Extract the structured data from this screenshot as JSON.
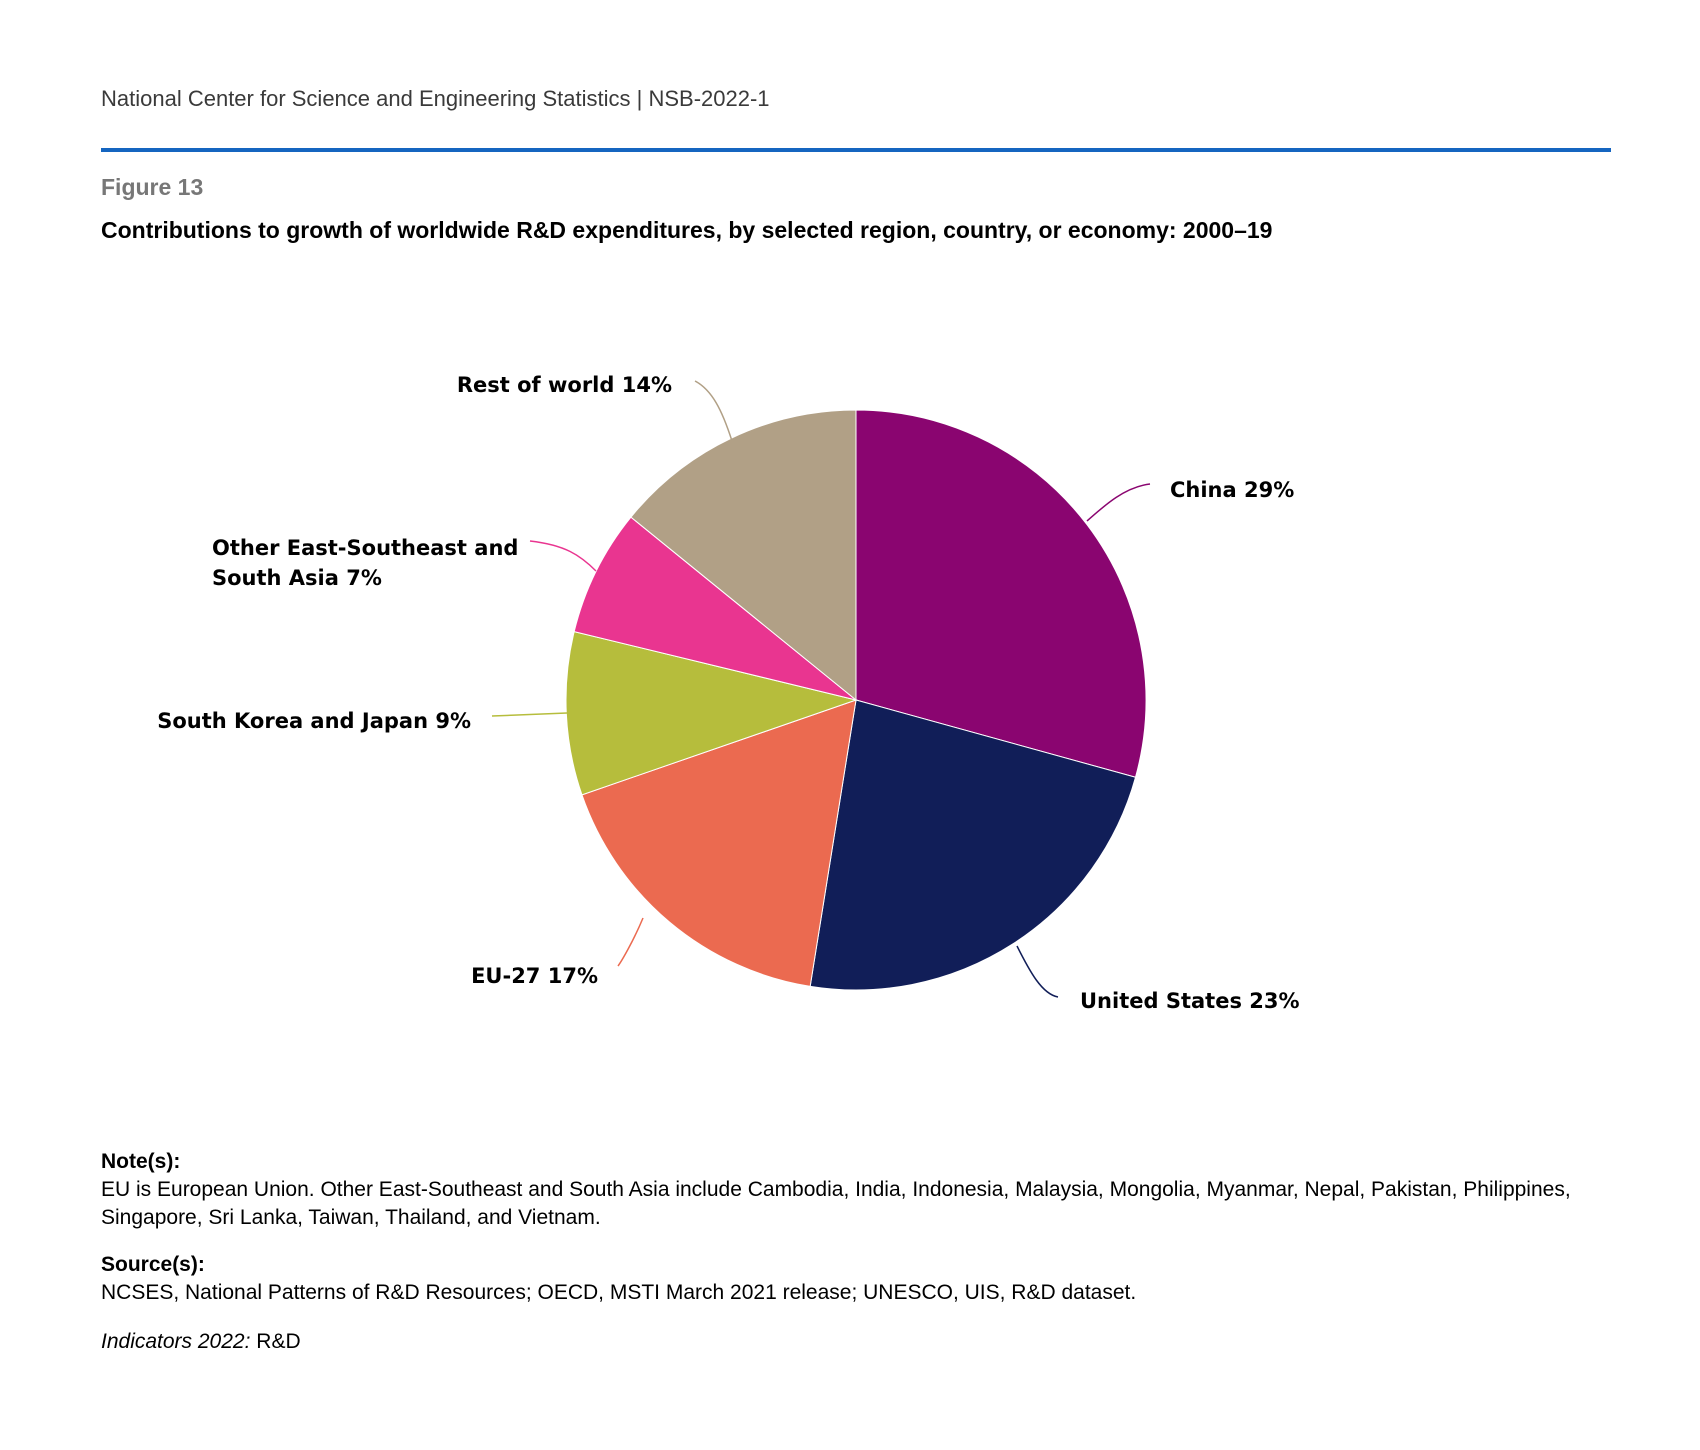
{
  "header": {
    "text": "National Center for Science and Engineering Statistics  |  NSB-2022-1"
  },
  "figure": {
    "label": "Figure 13",
    "title": "Contributions to growth of worldwide R&D expenditures, by selected region, country, or economy: 2000–19"
  },
  "chart_data": {
    "type": "pie",
    "title": "Contributions to growth of worldwide R&D expenditures, by selected region, country, or economy: 2000–19",
    "start_angle_deg": 0,
    "direction": "clockwise",
    "slices": [
      {
        "name": "China",
        "value": 29,
        "label": "China 29%",
        "color": "#8a0570"
      },
      {
        "name": "United States",
        "value": 23,
        "label": "United States 23%",
        "color": "#111e58"
      },
      {
        "name": "EU-27",
        "value": 17,
        "label": "EU-27 17%",
        "color": "#eb6a50"
      },
      {
        "name": "South Korea and Japan",
        "value": 9,
        "label": "South Korea and Japan 9%",
        "color": "#b6bd3c"
      },
      {
        "name": "Other East-Southeast and South Asia",
        "value": 7,
        "label_lines": [
          "Other East-Southeast and",
          "South Asia 7%"
        ],
        "color": "#e93590"
      },
      {
        "name": "Rest of world",
        "value": 14,
        "label": "Rest of world 14%",
        "color": "#b1a086"
      }
    ]
  },
  "notes": {
    "heading": "Note(s):",
    "text": "EU is European Union. Other East-Southeast and South Asia include Cambodia, India, Indonesia, Malaysia, Mongolia, Myanmar, Nepal, Pakistan, Philippines, Singapore, Sri Lanka, Taiwan, Thailand, and Vietnam."
  },
  "sources": {
    "heading": "Source(s):",
    "text": "NCSES, National Patterns of R&D Resources; OECD, MSTI March 2021 release; UNESCO, UIS, R&D dataset."
  },
  "indicators": {
    "italic": "Indicators 2022:",
    "text": " R&D"
  }
}
